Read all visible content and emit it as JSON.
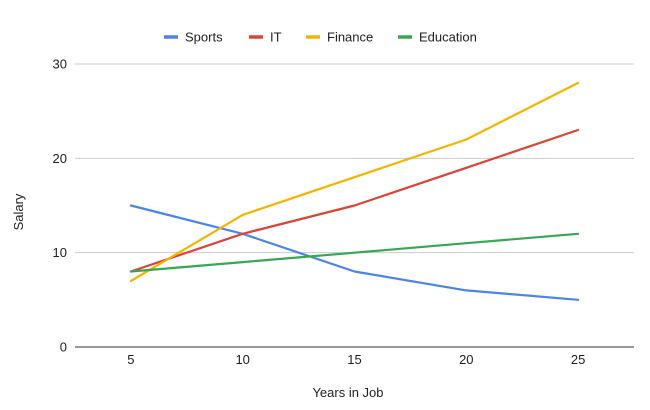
{
  "chart_data": {
    "type": "line",
    "title": "",
    "xlabel": "Years in Job",
    "ylabel": "Salary",
    "x": [
      5,
      10,
      15,
      20,
      25
    ],
    "xlim": [
      2.5,
      27.5
    ],
    "ylim": [
      0,
      30
    ],
    "yticks": [
      0,
      10,
      20,
      30
    ],
    "grid": true,
    "legend": "top-center",
    "series": [
      {
        "name": "Sports",
        "color": "#4a86e8",
        "values": [
          15,
          12,
          8,
          6,
          5
        ]
      },
      {
        "name": "IT",
        "color": "#db4437",
        "values": [
          8,
          12,
          15,
          19,
          23
        ]
      },
      {
        "name": "Finance",
        "color": "#f4b400",
        "values": [
          7,
          14,
          18,
          22,
          28
        ]
      },
      {
        "name": "Education",
        "color": "#34a853",
        "values": [
          8,
          9,
          10,
          11,
          12
        ]
      }
    ]
  }
}
